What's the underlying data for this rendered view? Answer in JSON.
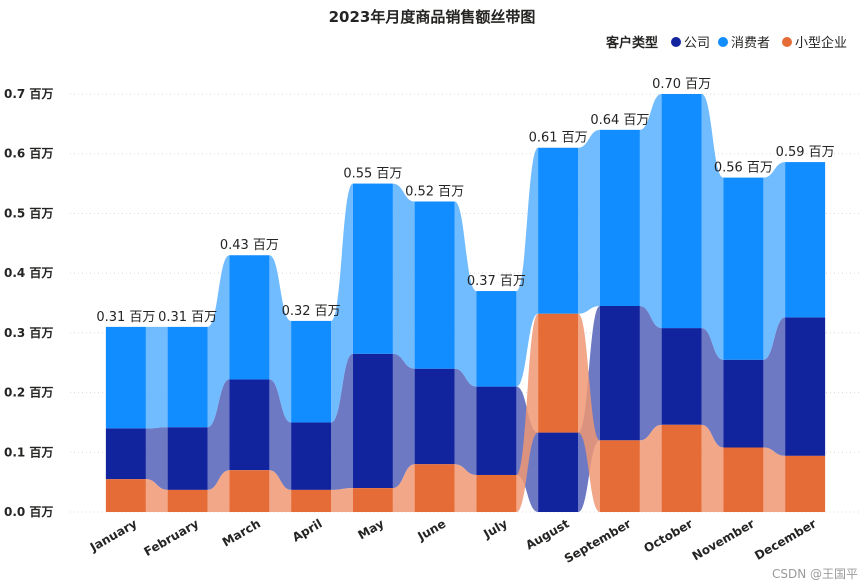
{
  "chart_data": {
    "type": "ribbon",
    "title": "2023年月度商品销售额丝带图",
    "legend": {
      "title": "客户类型",
      "position": "top-right",
      "items": [
        {
          "name": "公司",
          "color": "#12239E"
        },
        {
          "name": "消费者",
          "color": "#118DFF"
        },
        {
          "name": "小型企业",
          "color": "#E66C37"
        }
      ]
    },
    "categories": [
      "January",
      "February",
      "March",
      "April",
      "May",
      "June",
      "July",
      "August",
      "September",
      "October",
      "November",
      "December"
    ],
    "series": [
      {
        "name": "公司",
        "color": "#12239E",
        "values": [
          0.085,
          0.105,
          0.152,
          0.113,
          0.225,
          0.16,
          0.148,
          0.133,
          0.225,
          0.162,
          0.147,
          0.232
        ]
      },
      {
        "name": "消费者",
        "color": "#118DFF",
        "values": [
          0.17,
          0.168,
          0.208,
          0.17,
          0.285,
          0.28,
          0.16,
          0.278,
          0.295,
          0.392,
          0.305,
          0.26
        ]
      },
      {
        "name": "小型企业",
        "color": "#E66C37",
        "values": [
          0.055,
          0.037,
          0.07,
          0.037,
          0.04,
          0.08,
          0.062,
          0.199,
          0.12,
          0.146,
          0.108,
          0.094
        ]
      }
    ],
    "rank_order": [
      [
        "小型企业",
        "公司",
        "消费者"
      ],
      [
        "小型企业",
        "公司",
        "消费者"
      ],
      [
        "小型企业",
        "公司",
        "消费者"
      ],
      [
        "小型企业",
        "公司",
        "消费者"
      ],
      [
        "小型企业",
        "公司",
        "消费者"
      ],
      [
        "小型企业",
        "公司",
        "消费者"
      ],
      [
        "小型企业",
        "公司",
        "消费者"
      ],
      [
        "公司",
        "小型企业",
        "消费者"
      ],
      [
        "小型企业",
        "公司",
        "消费者"
      ],
      [
        "小型企业",
        "公司",
        "消费者"
      ],
      [
        "小型企业",
        "公司",
        "消费者"
      ],
      [
        "小型企业",
        "公司",
        "消费者"
      ]
    ],
    "total_labels": [
      "0.31 百万",
      "0.31 百万",
      "0.43 百万",
      "0.32 百万",
      "0.55 百万",
      "0.52 百万",
      "0.37 百万",
      "0.61 百万",
      "0.64 百万",
      "0.70 百万",
      "0.56 百万",
      "0.59 百万"
    ],
    "yticks": [
      "0.0 百万",
      "0.1 百万",
      "0.2 百万",
      "0.3 百万",
      "0.4 百万",
      "0.5 百万",
      "0.6 百万",
      "0.7 百万"
    ],
    "ylim": [
      0,
      0.7
    ],
    "grid": true
  },
  "watermark": "CSDN @王国平"
}
